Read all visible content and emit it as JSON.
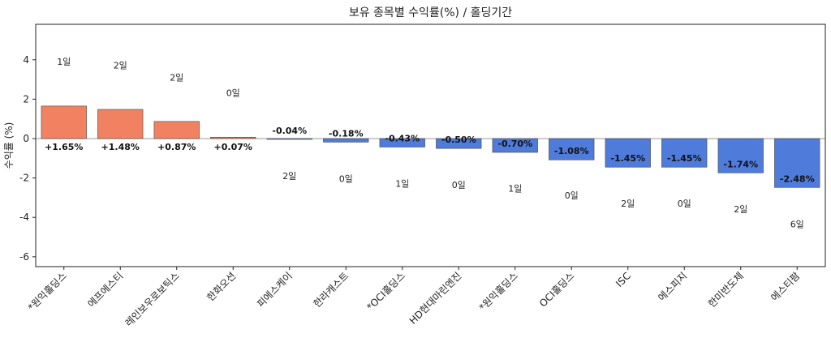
{
  "chart_data": {
    "type": "bar",
    "title": "보유 종목별 수익률(%) / 홀딩기간",
    "xlabel": "",
    "ylabel": "수익률 (%)",
    "ylim": [
      -6.5,
      5.8
    ],
    "yticks": [
      -6,
      -4,
      -2,
      0,
      2,
      4
    ],
    "ytick_labels": [
      "-6",
      "-4",
      "-2",
      "0",
      "2",
      "4"
    ],
    "categories": [
      "*원익홀딩스",
      "에프에스티",
      "레인보우로보틱스",
      "한화오션",
      "피에스케이",
      "한라캐스트",
      "*OCI홀딩스",
      "HD현대마린엔진",
      "*원익홀딩스",
      "OCI홀딩스",
      "ISC",
      "에스피지",
      "한미반도체",
      "에스티팜"
    ],
    "values": [
      1.65,
      1.48,
      0.87,
      0.07,
      -0.04,
      -0.18,
      -0.43,
      -0.5,
      -0.7,
      -1.08,
      -1.45,
      -1.45,
      -1.74,
      -2.48
    ],
    "value_labels": [
      "+1.65%",
      "+1.48%",
      "+0.87%",
      "+0.07%",
      "-0.04%",
      "-0.18%",
      "-0.43%",
      "-0.50%",
      "-0.70%",
      "-1.08%",
      "-1.45%",
      "-1.45%",
      "-1.74%",
      "-2.48%"
    ],
    "hold_labels": [
      "1일",
      "2일",
      "2일",
      "0일",
      "2일",
      "0일",
      "1일",
      "0일",
      "1일",
      "0일",
      "2일",
      "0일",
      "2일",
      "6일"
    ],
    "hold_label_y": [
      3.75,
      3.55,
      2.95,
      2.15,
      -2.05,
      -2.2,
      -2.45,
      -2.5,
      -2.7,
      -3.05,
      -3.45,
      -3.45,
      -3.75,
      -4.5
    ],
    "positive_color": "#f08262",
    "negative_color": "#4f7bdb",
    "grid": false,
    "zero_line": true
  }
}
